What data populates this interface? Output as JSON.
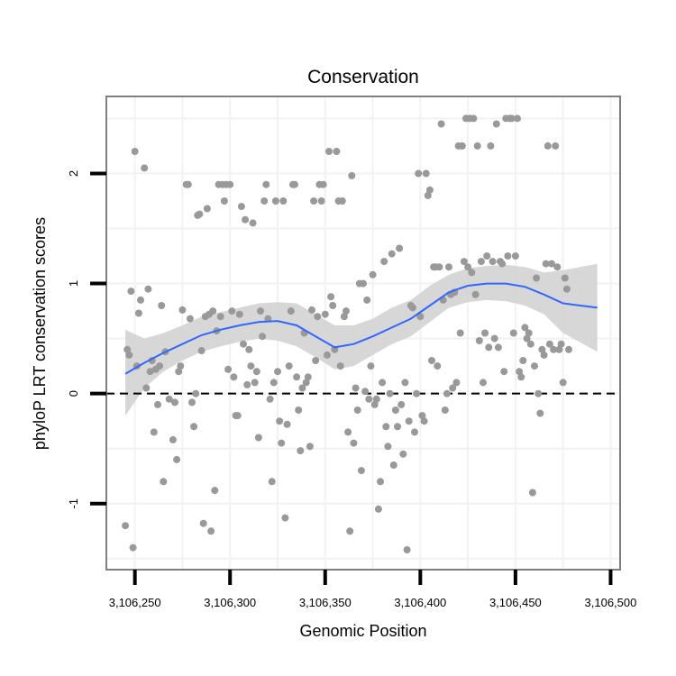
{
  "chart_data": {
    "type": "scatter",
    "title": "Conservation",
    "xlabel": "Genomic Position",
    "ylabel": "phyloP LRT conservation scores",
    "xlim": [
      3106235,
      3106505
    ],
    "ylim": [
      -1.6,
      2.7
    ],
    "x_ticks": [
      {
        "value": 3106250,
        "label": "3,106,250"
      },
      {
        "value": 3106300,
        "label": "3,106,300"
      },
      {
        "value": 3106350,
        "label": "3,106,350"
      },
      {
        "value": 3106400,
        "label": "3,106,400"
      },
      {
        "value": 3106450,
        "label": "3,106,450"
      },
      {
        "value": 3106500,
        "label": "3,106,500"
      }
    ],
    "y_ticks": [
      {
        "value": -1,
        "label": "-1"
      },
      {
        "value": 0,
        "label": "0"
      },
      {
        "value": 1,
        "label": "1"
      },
      {
        "value": 2,
        "label": "2"
      }
    ],
    "reference_line": {
      "y": 0,
      "style": "dashed"
    },
    "grid": true,
    "colors": {
      "points": "#999999",
      "smooth_line": "#3366ff",
      "confidence_band": "#d3d3d3",
      "panel_border": "#7f7f7f",
      "grid": "#f2f2f2"
    },
    "points": [
      {
        "x": 3106245,
        "y": -1.2
      },
      {
        "x": 3106246,
        "y": 0.4
      },
      {
        "x": 3106247,
        "y": 0.35
      },
      {
        "x": 3106248,
        "y": 0.93
      },
      {
        "x": 3106249,
        "y": -1.4
      },
      {
        "x": 3106250,
        "y": 2.2
      },
      {
        "x": 3106251,
        "y": 0.25
      },
      {
        "x": 3106252,
        "y": 0.73
      },
      {
        "x": 3106253,
        "y": 0.85
      },
      {
        "x": 3106255,
        "y": 2.05
      },
      {
        "x": 3106256,
        "y": 0.05
      },
      {
        "x": 3106257,
        "y": 0.95
      },
      {
        "x": 3106258,
        "y": 0.2
      },
      {
        "x": 3106259,
        "y": 0.3
      },
      {
        "x": 3106260,
        "y": -0.35
      },
      {
        "x": 3106261,
        "y": 0.22
      },
      {
        "x": 3106262,
        "y": -0.1
      },
      {
        "x": 3106263,
        "y": 0.25
      },
      {
        "x": 3106264,
        "y": 0.8
      },
      {
        "x": 3106265,
        "y": -0.8
      },
      {
        "x": 3106266,
        "y": 0.38
      },
      {
        "x": 3106268,
        "y": -0.05
      },
      {
        "x": 3106270,
        "y": -0.42
      },
      {
        "x": 3106271,
        "y": -0.08
      },
      {
        "x": 3106272,
        "y": -0.6
      },
      {
        "x": 3106273,
        "y": 0.2
      },
      {
        "x": 3106274,
        "y": 0.25
      },
      {
        "x": 3106275,
        "y": 0.76
      },
      {
        "x": 3106277,
        "y": 1.9
      },
      {
        "x": 3106278,
        "y": 1.9
      },
      {
        "x": 3106279,
        "y": 0.68
      },
      {
        "x": 3106280,
        "y": -0.08
      },
      {
        "x": 3106281,
        "y": -0.3
      },
      {
        "x": 3106282,
        "y": 0.0
      },
      {
        "x": 3106283,
        "y": 1.62
      },
      {
        "x": 3106284,
        "y": 1.63
      },
      {
        "x": 3106285,
        "y": 0.39
      },
      {
        "x": 3106286,
        "y": -1.18
      },
      {
        "x": 3106287,
        "y": 0.7
      },
      {
        "x": 3106288,
        "y": 1.68
      },
      {
        "x": 3106289,
        "y": 0.72
      },
      {
        "x": 3106290,
        "y": -1.25
      },
      {
        "x": 3106291,
        "y": 0.75
      },
      {
        "x": 3106292,
        "y": -0.88
      },
      {
        "x": 3106293,
        "y": 0.57
      },
      {
        "x": 3106294,
        "y": 1.9
      },
      {
        "x": 3106295,
        "y": 0.7
      },
      {
        "x": 3106296,
        "y": 1.9
      },
      {
        "x": 3106297,
        "y": 1.75
      },
      {
        "x": 3106298,
        "y": 1.9
      },
      {
        "x": 3106299,
        "y": 0.22
      },
      {
        "x": 3106300,
        "y": 1.9
      },
      {
        "x": 3106301,
        "y": 0.75
      },
      {
        "x": 3106302,
        "y": 0.15
      },
      {
        "x": 3106303,
        "y": -0.2
      },
      {
        "x": 3106304,
        "y": -0.2
      },
      {
        "x": 3106305,
        "y": 0.72
      },
      {
        "x": 3106306,
        "y": 1.7
      },
      {
        "x": 3106307,
        "y": 0.45
      },
      {
        "x": 3106308,
        "y": 1.58
      },
      {
        "x": 3106309,
        "y": 0.08
      },
      {
        "x": 3106310,
        "y": 0.4
      },
      {
        "x": 3106311,
        "y": 0.25
      },
      {
        "x": 3106312,
        "y": 1.55
      },
      {
        "x": 3106313,
        "y": 0.1
      },
      {
        "x": 3106314,
        "y": 0.2
      },
      {
        "x": 3106315,
        "y": -0.4
      },
      {
        "x": 3106316,
        "y": 0.75
      },
      {
        "x": 3106317,
        "y": 0.52
      },
      {
        "x": 3106318,
        "y": 1.75
      },
      {
        "x": 3106319,
        "y": 1.9
      },
      {
        "x": 3106320,
        "y": 0.68
      },
      {
        "x": 3106321,
        "y": -0.05
      },
      {
        "x": 3106322,
        "y": -0.8
      },
      {
        "x": 3106323,
        "y": 0.1
      },
      {
        "x": 3106324,
        "y": 1.75
      },
      {
        "x": 3106325,
        "y": 0.2
      },
      {
        "x": 3106326,
        "y": -0.25
      },
      {
        "x": 3106327,
        "y": -0.45
      },
      {
        "x": 3106328,
        "y": 1.75
      },
      {
        "x": 3106329,
        "y": -1.13
      },
      {
        "x": 3106330,
        "y": -0.28
      },
      {
        "x": 3106331,
        "y": 0.25
      },
      {
        "x": 3106332,
        "y": 0.75
      },
      {
        "x": 3106333,
        "y": 1.9
      },
      {
        "x": 3106334,
        "y": 1.9
      },
      {
        "x": 3106335,
        "y": 0.15
      },
      {
        "x": 3106336,
        "y": -0.15
      },
      {
        "x": 3106337,
        "y": -0.52
      },
      {
        "x": 3106338,
        "y": 0.05
      },
      {
        "x": 3106339,
        "y": 0.55
      },
      {
        "x": 3106340,
        "y": 0.1
      },
      {
        "x": 3106341,
        "y": 0.15
      },
      {
        "x": 3106342,
        "y": -0.48
      },
      {
        "x": 3106343,
        "y": 0.76
      },
      {
        "x": 3106344,
        "y": 1.75
      },
      {
        "x": 3106345,
        "y": 0.3
      },
      {
        "x": 3106346,
        "y": 0.7
      },
      {
        "x": 3106347,
        "y": 1.9
      },
      {
        "x": 3106348,
        "y": 1.75
      },
      {
        "x": 3106349,
        "y": 1.9
      },
      {
        "x": 3106350,
        "y": 0.72
      },
      {
        "x": 3106351,
        "y": 0.35
      },
      {
        "x": 3106352,
        "y": 2.2
      },
      {
        "x": 3106353,
        "y": 0.88
      },
      {
        "x": 3106354,
        "y": 0.8
      },
      {
        "x": 3106355,
        "y": 0.4
      },
      {
        "x": 3106356,
        "y": 2.2
      },
      {
        "x": 3106357,
        "y": 1.75
      },
      {
        "x": 3106358,
        "y": 0.25
      },
      {
        "x": 3106359,
        "y": 1.75
      },
      {
        "x": 3106360,
        "y": 0.7
      },
      {
        "x": 3106361,
        "y": 0.75
      },
      {
        "x": 3106362,
        "y": -0.35
      },
      {
        "x": 3106363,
        "y": -1.25
      },
      {
        "x": 3106364,
        "y": 1.98
      },
      {
        "x": 3106365,
        "y": -0.45
      },
      {
        "x": 3106366,
        "y": 0.05
      },
      {
        "x": 3106367,
        "y": -0.15
      },
      {
        "x": 3106368,
        "y": 1.0
      },
      {
        "x": 3106369,
        "y": -0.7
      },
      {
        "x": 3106370,
        "y": 1.0
      },
      {
        "x": 3106371,
        "y": 0.02
      },
      {
        "x": 3106372,
        "y": 0.85
      },
      {
        "x": 3106373,
        "y": -0.05
      },
      {
        "x": 3106374,
        "y": 0.25
      },
      {
        "x": 3106375,
        "y": 1.08
      },
      {
        "x": 3106376,
        "y": -0.1
      },
      {
        "x": 3106377,
        "y": -0.05
      },
      {
        "x": 3106378,
        "y": -1.05
      },
      {
        "x": 3106379,
        "y": -0.8
      },
      {
        "x": 3106380,
        "y": 0.1
      },
      {
        "x": 3106381,
        "y": 1.2
      },
      {
        "x": 3106382,
        "y": -0.3
      },
      {
        "x": 3106383,
        "y": -0.48
      },
      {
        "x": 3106384,
        "y": 0.0
      },
      {
        "x": 3106385,
        "y": 1.27
      },
      {
        "x": 3106386,
        "y": -0.65
      },
      {
        "x": 3106387,
        "y": -0.15
      },
      {
        "x": 3106388,
        "y": -0.3
      },
      {
        "x": 3106389,
        "y": 1.32
      },
      {
        "x": 3106390,
        "y": -0.1
      },
      {
        "x": 3106391,
        "y": -0.55
      },
      {
        "x": 3106392,
        "y": 0.1
      },
      {
        "x": 3106393,
        "y": -1.42
      },
      {
        "x": 3106394,
        "y": -0.25
      },
      {
        "x": 3106395,
        "y": 0.8
      },
      {
        "x": 3106396,
        "y": 0.78
      },
      {
        "x": 3106397,
        "y": -0.35
      },
      {
        "x": 3106398,
        "y": 0.0
      },
      {
        "x": 3106399,
        "y": 2.0
      },
      {
        "x": 3106400,
        "y": 0.7
      },
      {
        "x": 3106401,
        "y": -0.2
      },
      {
        "x": 3106402,
        "y": -0.25
      },
      {
        "x": 3106403,
        "y": 2.0
      },
      {
        "x": 3106404,
        "y": 1.8
      },
      {
        "x": 3106405,
        "y": 1.85
      },
      {
        "x": 3106406,
        "y": 0.3
      },
      {
        "x": 3106407,
        "y": 1.15
      },
      {
        "x": 3106408,
        "y": 1.15
      },
      {
        "x": 3106409,
        "y": 0.25
      },
      {
        "x": 3106410,
        "y": 1.15
      },
      {
        "x": 3106411,
        "y": 2.45
      },
      {
        "x": 3106412,
        "y": 0.85
      },
      {
        "x": 3106413,
        "y": -0.15
      },
      {
        "x": 3106414,
        "y": 0.0
      },
      {
        "x": 3106415,
        "y": 1.15
      },
      {
        "x": 3106416,
        "y": 0.9
      },
      {
        "x": 3106417,
        "y": 0.05
      },
      {
        "x": 3106418,
        "y": 0.92
      },
      {
        "x": 3106419,
        "y": 0.1
      },
      {
        "x": 3106420,
        "y": 2.25
      },
      {
        "x": 3106421,
        "y": 0.55
      },
      {
        "x": 3106422,
        "y": 2.25
      },
      {
        "x": 3106423,
        "y": 1.2
      },
      {
        "x": 3106424,
        "y": 2.5
      },
      {
        "x": 3106425,
        "y": 1.15
      },
      {
        "x": 3106426,
        "y": 2.5
      },
      {
        "x": 3106427,
        "y": 1.1
      },
      {
        "x": 3106428,
        "y": 2.5
      },
      {
        "x": 3106429,
        "y": 0.9
      },
      {
        "x": 3106430,
        "y": 2.25
      },
      {
        "x": 3106431,
        "y": 0.48
      },
      {
        "x": 3106432,
        "y": 1.2
      },
      {
        "x": 3106433,
        "y": 0.1
      },
      {
        "x": 3106434,
        "y": 0.55
      },
      {
        "x": 3106435,
        "y": 1.25
      },
      {
        "x": 3106436,
        "y": 0.42
      },
      {
        "x": 3106437,
        "y": 2.25
      },
      {
        "x": 3106438,
        "y": 1.2
      },
      {
        "x": 3106439,
        "y": 0.5
      },
      {
        "x": 3106440,
        "y": 2.45
      },
      {
        "x": 3106441,
        "y": 0.42
      },
      {
        "x": 3106442,
        "y": 1.2
      },
      {
        "x": 3106443,
        "y": 1.18
      },
      {
        "x": 3106444,
        "y": 0.2
      },
      {
        "x": 3106445,
        "y": 2.5
      },
      {
        "x": 3106446,
        "y": 1.25
      },
      {
        "x": 3106447,
        "y": 2.5
      },
      {
        "x": 3106448,
        "y": 2.5
      },
      {
        "x": 3106449,
        "y": 0.55
      },
      {
        "x": 3106450,
        "y": 1.25
      },
      {
        "x": 3106451,
        "y": 2.5
      },
      {
        "x": 3106452,
        "y": 0.2
      },
      {
        "x": 3106453,
        "y": 0.15
      },
      {
        "x": 3106454,
        "y": 0.3
      },
      {
        "x": 3106455,
        "y": 0.6
      },
      {
        "x": 3106456,
        "y": 0.5
      },
      {
        "x": 3106457,
        "y": 0.55
      },
      {
        "x": 3106458,
        "y": 0.45
      },
      {
        "x": 3106459,
        "y": -0.9
      },
      {
        "x": 3106460,
        "y": 0.25
      },
      {
        "x": 3106461,
        "y": 1.05
      },
      {
        "x": 3106462,
        "y": 0.0
      },
      {
        "x": 3106463,
        "y": -0.18
      },
      {
        "x": 3106464,
        "y": 0.4
      },
      {
        "x": 3106465,
        "y": 0.35
      },
      {
        "x": 3106466,
        "y": 1.18
      },
      {
        "x": 3106467,
        "y": 2.25
      },
      {
        "x": 3106468,
        "y": 0.45
      },
      {
        "x": 3106469,
        "y": 1.18
      },
      {
        "x": 3106470,
        "y": 0.4
      },
      {
        "x": 3106471,
        "y": 2.25
      },
      {
        "x": 3106472,
        "y": 1.15
      },
      {
        "x": 3106473,
        "y": 0.4
      },
      {
        "x": 3106474,
        "y": 0.45
      },
      {
        "x": 3106475,
        "y": 0.1
      },
      {
        "x": 3106476,
        "y": 1.05
      },
      {
        "x": 3106477,
        "y": 0.95
      },
      {
        "x": 3106478,
        "y": 0.4
      }
    ],
    "smooth": [
      {
        "x": 3106245,
        "y": 0.18,
        "lo": -0.2,
        "hi": 0.58
      },
      {
        "x": 3106255,
        "y": 0.28,
        "lo": 0.05,
        "hi": 0.5
      },
      {
        "x": 3106265,
        "y": 0.37,
        "lo": 0.2,
        "hi": 0.55
      },
      {
        "x": 3106275,
        "y": 0.45,
        "lo": 0.3,
        "hi": 0.62
      },
      {
        "x": 3106285,
        "y": 0.53,
        "lo": 0.38,
        "hi": 0.7
      },
      {
        "x": 3106295,
        "y": 0.58,
        "lo": 0.43,
        "hi": 0.74
      },
      {
        "x": 3106305,
        "y": 0.62,
        "lo": 0.47,
        "hi": 0.78
      },
      {
        "x": 3106315,
        "y": 0.65,
        "lo": 0.5,
        "hi": 0.82
      },
      {
        "x": 3106325,
        "y": 0.66,
        "lo": 0.48,
        "hi": 0.83
      },
      {
        "x": 3106335,
        "y": 0.62,
        "lo": 0.43,
        "hi": 0.82
      },
      {
        "x": 3106345,
        "y": 0.52,
        "lo": 0.33,
        "hi": 0.72
      },
      {
        "x": 3106355,
        "y": 0.42,
        "lo": 0.22,
        "hi": 0.62
      },
      {
        "x": 3106365,
        "y": 0.45,
        "lo": 0.25,
        "hi": 0.62
      },
      {
        "x": 3106375,
        "y": 0.52,
        "lo": 0.35,
        "hi": 0.68
      },
      {
        "x": 3106385,
        "y": 0.6,
        "lo": 0.45,
        "hi": 0.78
      },
      {
        "x": 3106395,
        "y": 0.68,
        "lo": 0.52,
        "hi": 0.85
      },
      {
        "x": 3106405,
        "y": 0.8,
        "lo": 0.65,
        "hi": 0.98
      },
      {
        "x": 3106415,
        "y": 0.92,
        "lo": 0.78,
        "hi": 1.08
      },
      {
        "x": 3106425,
        "y": 0.98,
        "lo": 0.83,
        "hi": 1.14
      },
      {
        "x": 3106435,
        "y": 1.0,
        "lo": 0.85,
        "hi": 1.16
      },
      {
        "x": 3106445,
        "y": 1.0,
        "lo": 0.84,
        "hi": 1.17
      },
      {
        "x": 3106455,
        "y": 0.97,
        "lo": 0.8,
        "hi": 1.15
      },
      {
        "x": 3106465,
        "y": 0.9,
        "lo": 0.72,
        "hi": 1.1
      },
      {
        "x": 3106475,
        "y": 0.82,
        "lo": 0.55,
        "hi": 1.12
      },
      {
        "x": 3106493,
        "y": 0.78,
        "lo": 0.38,
        "hi": 1.18
      }
    ]
  }
}
